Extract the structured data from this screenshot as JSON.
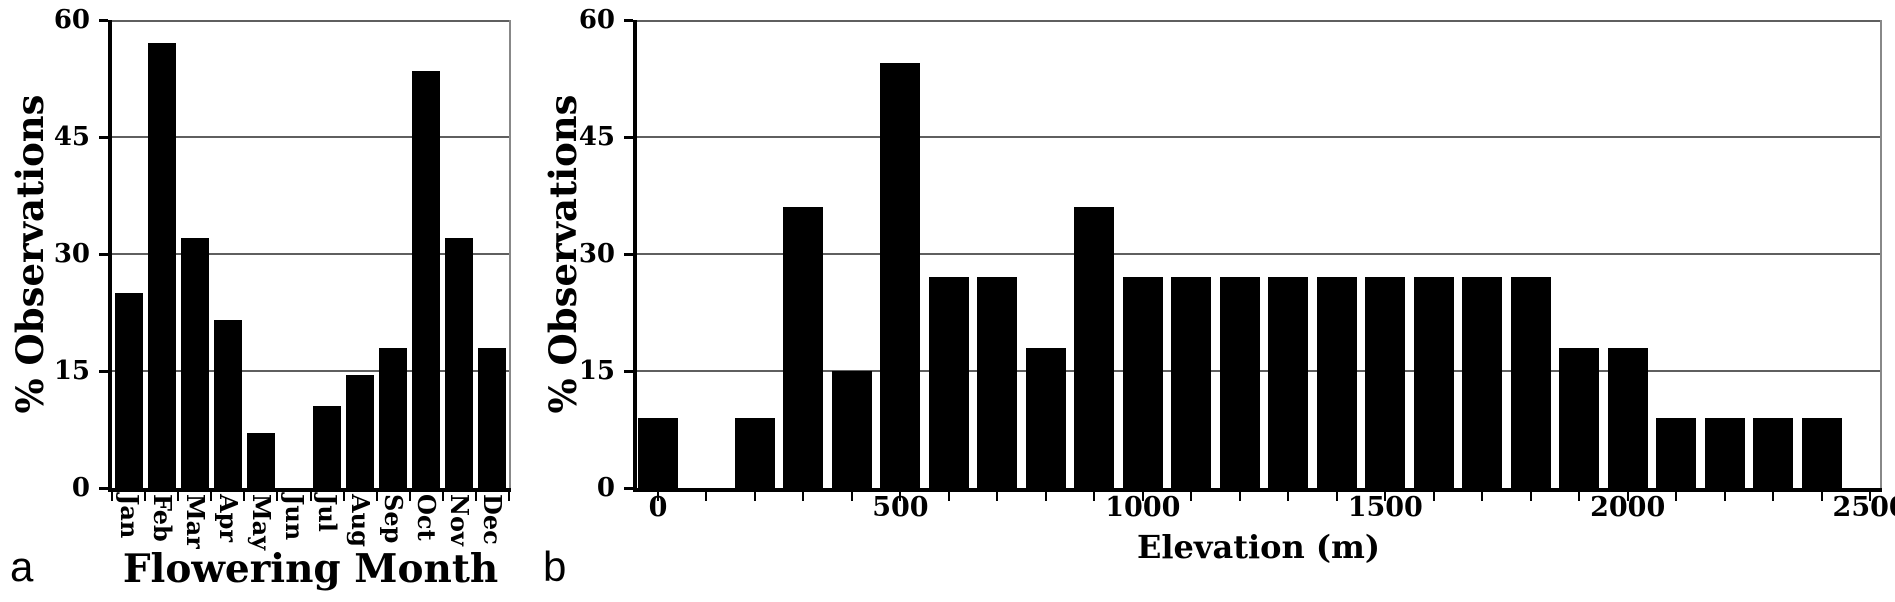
{
  "figure": {
    "background": "#ffffff",
    "panels": [
      {
        "letter": "a",
        "description": "flowering month histogram"
      },
      {
        "letter": "b",
        "description": "elevation histogram"
      }
    ]
  },
  "style": {
    "bar_color": "#000000",
    "axis_color": "#000000",
    "gridline_color": "#5f5f5f",
    "border_color": "#888888",
    "text_color": "#000000"
  },
  "chart_data": [
    {
      "type": "bar",
      "panel": "a",
      "title": "",
      "xlabel": "Flowering Month",
      "ylabel": "% Observations",
      "categories": [
        "Jan",
        "Feb",
        "Mar",
        "Apr",
        "May",
        "Jun",
        "Jul",
        "Aug",
        "Sep",
        "Oct",
        "Nov",
        "Dec"
      ],
      "values": [
        25,
        57,
        32,
        21.5,
        7,
        0,
        10.5,
        14.5,
        18,
        53.5,
        32,
        18
      ],
      "ylim": [
        0,
        60
      ],
      "yticks": [
        0,
        15,
        30,
        45,
        60
      ],
      "ytick_labels": [
        "0",
        "15",
        "30",
        "45",
        "60"
      ],
      "grid": "horizontal gridlines at 15, 30, 45, 60",
      "legend": "none"
    },
    {
      "type": "bar",
      "panel": "b",
      "title": "",
      "xlabel": "Elevation (m)",
      "ylabel": "% Observations",
      "x": [
        0,
        100,
        200,
        300,
        400,
        500,
        600,
        700,
        800,
        900,
        1000,
        1100,
        1200,
        1300,
        1400,
        1500,
        1600,
        1700,
        1800,
        1900,
        2000,
        2100,
        2200,
        2300,
        2400
      ],
      "values": [
        9,
        0,
        9,
        36,
        15,
        54.5,
        27,
        27,
        18,
        36,
        27,
        27,
        27,
        27,
        27,
        27,
        27,
        27,
        27,
        18,
        18,
        9,
        9,
        9,
        9
      ],
      "bin_width_m": 100,
      "xlim": [
        0,
        2500
      ],
      "xtick_interval": 100,
      "xtick_label_positions": [
        0,
        500,
        1000,
        1500,
        2000,
        2500
      ],
      "xtick_labels": [
        "0",
        "500",
        "1000",
        "1500",
        "2000",
        "2500"
      ],
      "ylim": [
        0,
        60
      ],
      "yticks": [
        0,
        15,
        30,
        45,
        60
      ],
      "ytick_labels": [
        "0",
        "15",
        "30",
        "45",
        "60"
      ],
      "grid": "horizontal gridlines at 15, 30, 45, 60",
      "legend": "none"
    }
  ]
}
